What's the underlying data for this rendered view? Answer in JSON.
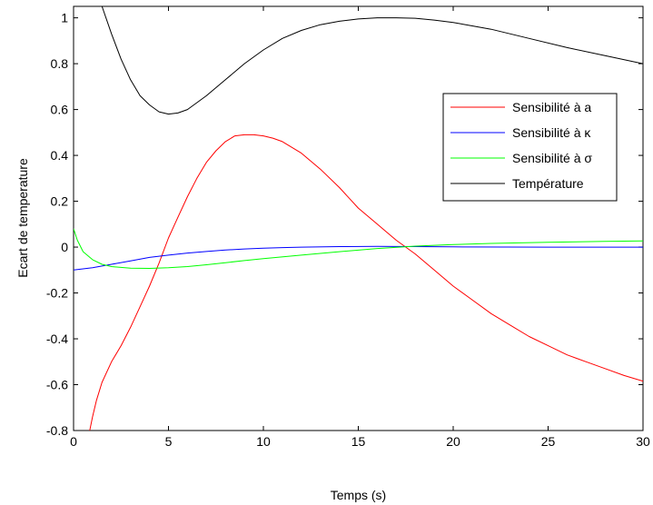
{
  "chart_data": {
    "type": "line",
    "xlabel": "Temps (s)",
    "ylabel": "Ecart de temperature",
    "xlim": [
      0,
      30
    ],
    "ylim": [
      -0.8,
      1.05
    ],
    "xticks": [
      0,
      5,
      10,
      15,
      20,
      25,
      30
    ],
    "xtick_labels": [
      "0",
      "5",
      "10",
      "15",
      "20",
      "25",
      "30"
    ],
    "yticks": [
      -0.8,
      -0.6,
      -0.4,
      -0.2,
      0,
      0.2,
      0.4,
      0.6,
      0.8,
      1
    ],
    "ytick_labels": [
      "-0.8",
      "-0.6",
      "-0.4",
      "-0.2",
      "0",
      "0.2",
      "0.4",
      "0.6",
      "0.8",
      "1"
    ],
    "grid": false,
    "legend_position": "right",
    "series": [
      {
        "name": "Sensibilité à a",
        "color": "#ff0000",
        "x": [
          0.85,
          1.0,
          1.2,
          1.5,
          2.0,
          2.5,
          3.0,
          3.5,
          4.0,
          4.5,
          5.0,
          5.5,
          6.0,
          6.5,
          7.0,
          7.5,
          8.0,
          8.5,
          9.0,
          9.5,
          10.0,
          10.5,
          11.0,
          12.0,
          13.0,
          14.0,
          15.0,
          16.0,
          17.0,
          18.0,
          19.0,
          20.0,
          21.0,
          22.0,
          23.0,
          24.0,
          25.0,
          26.0,
          27.0,
          28.0,
          29.0,
          30.0
        ],
        "y": [
          -0.8,
          -0.74,
          -0.67,
          -0.59,
          -0.5,
          -0.43,
          -0.35,
          -0.26,
          -0.17,
          -0.07,
          0.04,
          0.13,
          0.22,
          0.3,
          0.37,
          0.42,
          0.46,
          0.485,
          0.49,
          0.49,
          0.485,
          0.475,
          0.46,
          0.41,
          0.34,
          0.26,
          0.17,
          0.1,
          0.03,
          -0.03,
          -0.1,
          -0.17,
          -0.23,
          -0.29,
          -0.34,
          -0.39,
          -0.43,
          -0.47,
          -0.5,
          -0.53,
          -0.56,
          -0.585
        ]
      },
      {
        "name": "Sensibilité à κ",
        "color": "#0000ff",
        "x": [
          0,
          1,
          2,
          3,
          4,
          5,
          6,
          7,
          8,
          9,
          10,
          11,
          12,
          14,
          16,
          18,
          20,
          25,
          30
        ],
        "y": [
          -0.1,
          -0.09,
          -0.075,
          -0.06,
          -0.045,
          -0.035,
          -0.026,
          -0.019,
          -0.013,
          -0.008,
          -0.005,
          -0.002,
          0.0,
          0.002,
          0.003,
          0.002,
          0.001,
          0.0,
          0.0
        ]
      },
      {
        "name": "Sensibilité à σ",
        "color": "#00ff00",
        "x": [
          0,
          0.2,
          0.5,
          1.0,
          1.5,
          2.0,
          3.0,
          4.0,
          5.0,
          6.0,
          7.0,
          8.0,
          9.0,
          10.0,
          12.0,
          14.0,
          16.0,
          18.0,
          20.0,
          22.0,
          25.0,
          28.0,
          30.0
        ],
        "y": [
          0.08,
          0.03,
          -0.02,
          -0.055,
          -0.075,
          -0.085,
          -0.092,
          -0.093,
          -0.09,
          -0.085,
          -0.077,
          -0.068,
          -0.059,
          -0.05,
          -0.035,
          -0.02,
          -0.006,
          0.004,
          0.011,
          0.016,
          0.021,
          0.025,
          0.027
        ]
      },
      {
        "name": "Température",
        "color": "#000000",
        "x": [
          1.5,
          2.0,
          2.5,
          3.0,
          3.5,
          4.0,
          4.5,
          5.0,
          5.5,
          6.0,
          7.0,
          8.0,
          9.0,
          10.0,
          11.0,
          12.0,
          13.0,
          14.0,
          15.0,
          16.0,
          17.0,
          18.0,
          19.0,
          20.0,
          21.0,
          22.0,
          24.0,
          26.0,
          28.0,
          30.0
        ],
        "y": [
          1.05,
          0.93,
          0.82,
          0.73,
          0.66,
          0.62,
          0.59,
          0.58,
          0.585,
          0.6,
          0.66,
          0.73,
          0.8,
          0.86,
          0.91,
          0.945,
          0.97,
          0.985,
          0.995,
          1.0,
          1.0,
          0.998,
          0.99,
          0.98,
          0.965,
          0.95,
          0.91,
          0.87,
          0.835,
          0.8
        ]
      }
    ]
  }
}
